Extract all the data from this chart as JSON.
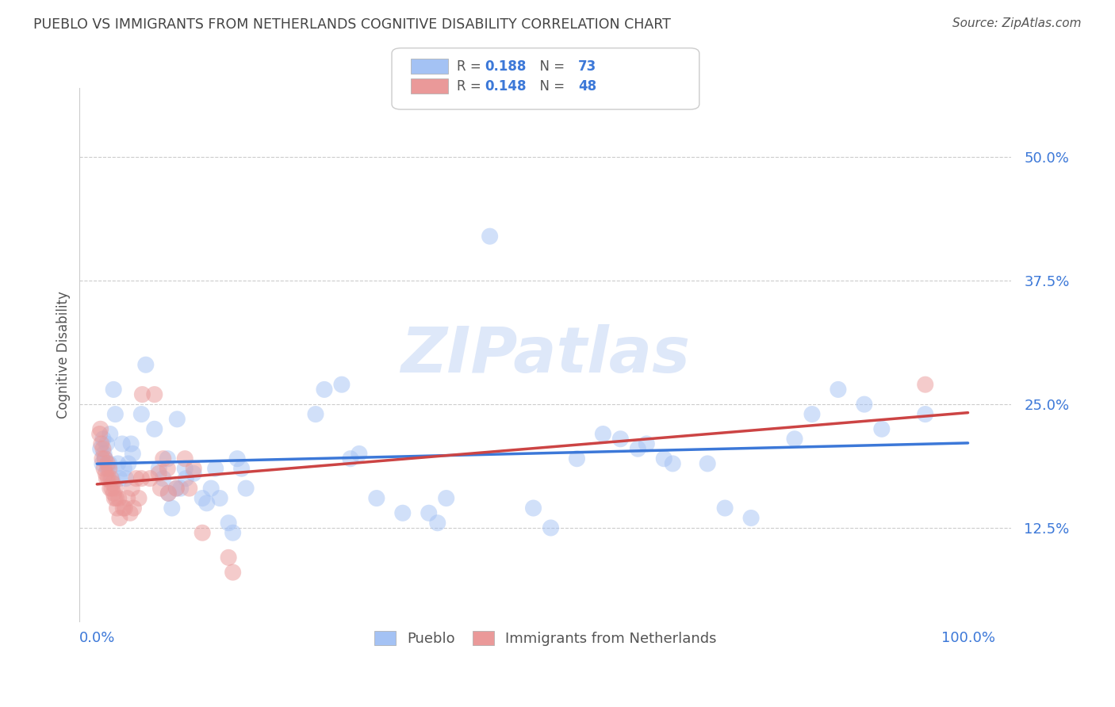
{
  "title": "PUEBLO VS IMMIGRANTS FROM NETHERLANDS COGNITIVE DISABILITY CORRELATION CHART",
  "source": "Source: ZipAtlas.com",
  "ylabel": "Cognitive Disability",
  "watermark": "ZIPatlas",
  "legend_pueblo_r": "0.188",
  "legend_pueblo_n": "73",
  "legend_netherlands_r": "0.148",
  "legend_netherlands_n": "48",
  "pueblo_color": "#a4c2f4",
  "netherlands_color": "#ea9999",
  "pueblo_line_color": "#3c78d8",
  "netherlands_line_color": "#cc4444",
  "axis_label_color": "#3c78d8",
  "title_color": "#444444",
  "grid_color": "#cccccc",
  "pueblo_scatter": [
    [
      0.004,
      0.205
    ],
    [
      0.006,
      0.19
    ],
    [
      0.007,
      0.215
    ],
    [
      0.008,
      0.2
    ],
    [
      0.009,
      0.195
    ],
    [
      0.011,
      0.21
    ],
    [
      0.012,
      0.185
    ],
    [
      0.014,
      0.19
    ],
    [
      0.015,
      0.22
    ],
    [
      0.017,
      0.175
    ],
    [
      0.019,
      0.265
    ],
    [
      0.021,
      0.24
    ],
    [
      0.024,
      0.19
    ],
    [
      0.026,
      0.175
    ],
    [
      0.029,
      0.21
    ],
    [
      0.031,
      0.185
    ],
    [
      0.033,
      0.175
    ],
    [
      0.036,
      0.19
    ],
    [
      0.039,
      0.21
    ],
    [
      0.041,
      0.2
    ],
    [
      0.051,
      0.24
    ],
    [
      0.056,
      0.29
    ],
    [
      0.066,
      0.225
    ],
    [
      0.071,
      0.185
    ],
    [
      0.076,
      0.175
    ],
    [
      0.081,
      0.195
    ],
    [
      0.082,
      0.16
    ],
    [
      0.086,
      0.145
    ],
    [
      0.091,
      0.165
    ],
    [
      0.092,
      0.235
    ],
    [
      0.096,
      0.165
    ],
    [
      0.101,
      0.185
    ],
    [
      0.102,
      0.175
    ],
    [
      0.111,
      0.18
    ],
    [
      0.121,
      0.155
    ],
    [
      0.126,
      0.15
    ],
    [
      0.131,
      0.165
    ],
    [
      0.136,
      0.185
    ],
    [
      0.141,
      0.155
    ],
    [
      0.151,
      0.13
    ],
    [
      0.156,
      0.12
    ],
    [
      0.161,
      0.195
    ],
    [
      0.166,
      0.185
    ],
    [
      0.171,
      0.165
    ],
    [
      0.251,
      0.24
    ],
    [
      0.261,
      0.265
    ],
    [
      0.281,
      0.27
    ],
    [
      0.291,
      0.195
    ],
    [
      0.301,
      0.2
    ],
    [
      0.321,
      0.155
    ],
    [
      0.351,
      0.14
    ],
    [
      0.381,
      0.14
    ],
    [
      0.391,
      0.13
    ],
    [
      0.401,
      0.155
    ],
    [
      0.451,
      0.42
    ],
    [
      0.501,
      0.145
    ],
    [
      0.521,
      0.125
    ],
    [
      0.551,
      0.195
    ],
    [
      0.581,
      0.22
    ],
    [
      0.601,
      0.215
    ],
    [
      0.621,
      0.205
    ],
    [
      0.631,
      0.21
    ],
    [
      0.651,
      0.195
    ],
    [
      0.661,
      0.19
    ],
    [
      0.701,
      0.19
    ],
    [
      0.721,
      0.145
    ],
    [
      0.751,
      0.135
    ],
    [
      0.801,
      0.215
    ],
    [
      0.821,
      0.24
    ],
    [
      0.851,
      0.265
    ],
    [
      0.881,
      0.25
    ],
    [
      0.901,
      0.225
    ],
    [
      0.951,
      0.24
    ]
  ],
  "netherlands_scatter": [
    [
      0.003,
      0.22
    ],
    [
      0.004,
      0.225
    ],
    [
      0.005,
      0.21
    ],
    [
      0.006,
      0.195
    ],
    [
      0.007,
      0.205
    ],
    [
      0.008,
      0.185
    ],
    [
      0.009,
      0.195
    ],
    [
      0.01,
      0.18
    ],
    [
      0.011,
      0.175
    ],
    [
      0.012,
      0.19
    ],
    [
      0.013,
      0.175
    ],
    [
      0.014,
      0.185
    ],
    [
      0.015,
      0.165
    ],
    [
      0.016,
      0.175
    ],
    [
      0.017,
      0.165
    ],
    [
      0.018,
      0.17
    ],
    [
      0.019,
      0.16
    ],
    [
      0.02,
      0.155
    ],
    [
      0.021,
      0.165
    ],
    [
      0.022,
      0.155
    ],
    [
      0.023,
      0.145
    ],
    [
      0.025,
      0.155
    ],
    [
      0.026,
      0.135
    ],
    [
      0.03,
      0.145
    ],
    [
      0.032,
      0.145
    ],
    [
      0.035,
      0.155
    ],
    [
      0.038,
      0.14
    ],
    [
      0.04,
      0.165
    ],
    [
      0.042,
      0.145
    ],
    [
      0.045,
      0.175
    ],
    [
      0.048,
      0.155
    ],
    [
      0.051,
      0.175
    ],
    [
      0.052,
      0.26
    ],
    [
      0.061,
      0.175
    ],
    [
      0.066,
      0.26
    ],
    [
      0.071,
      0.18
    ],
    [
      0.073,
      0.165
    ],
    [
      0.076,
      0.195
    ],
    [
      0.081,
      0.185
    ],
    [
      0.082,
      0.16
    ],
    [
      0.091,
      0.165
    ],
    [
      0.101,
      0.195
    ],
    [
      0.106,
      0.165
    ],
    [
      0.111,
      0.185
    ],
    [
      0.121,
      0.12
    ],
    [
      0.151,
      0.095
    ],
    [
      0.156,
      0.08
    ],
    [
      0.951,
      0.27
    ]
  ],
  "xlim": [
    -0.02,
    1.05
  ],
  "ylim": [
    0.03,
    0.57
  ],
  "ytick_vals": [
    0.125,
    0.25,
    0.375,
    0.5
  ],
  "ytick_labels": [
    "12.5%",
    "25.0%",
    "37.5%",
    "50.0%"
  ],
  "xtick_vals": [
    0.0,
    0.25,
    0.5,
    0.75,
    1.0
  ],
  "xtick_labels": [
    "0.0%",
    "",
    "",
    "",
    "100.0%"
  ],
  "background_color": "#ffffff"
}
